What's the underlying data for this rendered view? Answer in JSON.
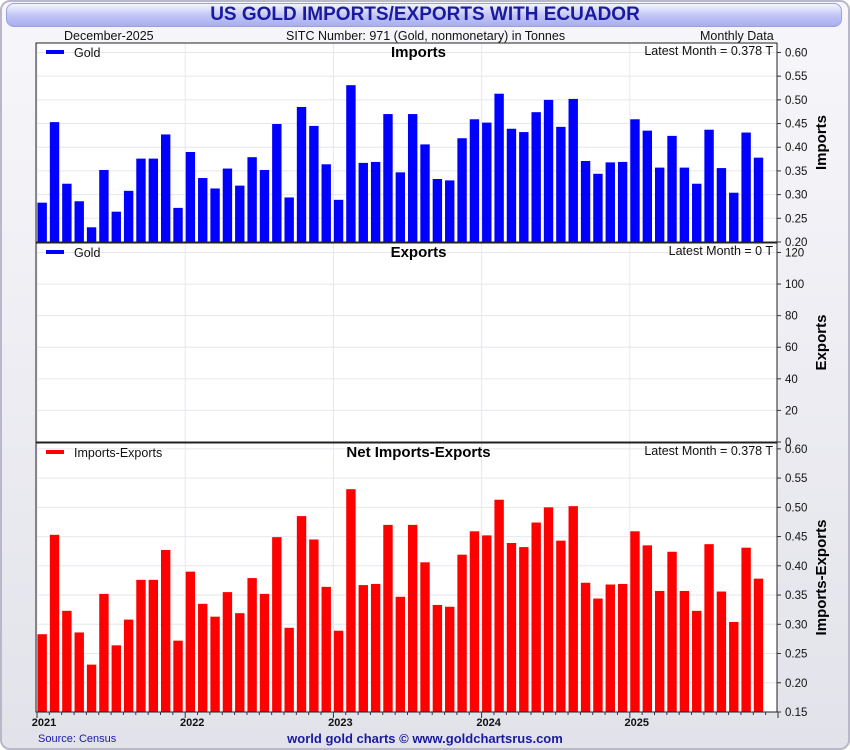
{
  "header": {
    "title": "US GOLD IMPORTS/EXPORTS WITH ECUADOR",
    "date": "December-2025",
    "sitc": "SITC Number: 971 (Gold, nonmonetary) in Tonnes",
    "frequency": "Monthly Data"
  },
  "footer": {
    "source": "Source: Census",
    "credit": "world gold charts © www.goldchartsrus.com"
  },
  "colors": {
    "imports": "#0000ff",
    "exports": "#0000ff",
    "net": "#ff0000",
    "title": "#1a1aa0"
  },
  "chart_data": [
    {
      "type": "bar",
      "title": "Imports",
      "ylabel": "Imports",
      "legend": "Gold",
      "latest": "Latest Month = 0.378 T",
      "ylim": [
        0.2,
        0.62
      ],
      "yticks": [
        "0.20",
        "0.25",
        "0.30",
        "0.35",
        "0.40",
        "0.45",
        "0.50",
        "0.55",
        "0.60"
      ],
      "start": "2021-01",
      "xtick_labels": [
        "2021",
        "2022",
        "2023",
        "2024",
        "2025"
      ],
      "values": [
        0.283,
        0.453,
        0.323,
        0.286,
        0.231,
        0.352,
        0.264,
        0.308,
        0.376,
        0.376,
        0.427,
        0.272,
        0.39,
        0.335,
        0.313,
        0.355,
        0.319,
        0.379,
        0.352,
        0.449,
        0.294,
        0.485,
        0.445,
        0.364,
        0.289,
        0.531,
        0.367,
        0.369,
        0.47,
        0.347,
        0.47,
        0.406,
        0.333,
        0.33,
        0.419,
        0.459,
        0.452,
        0.513,
        0.439,
        0.432,
        0.474,
        0.5,
        0.443,
        0.502,
        0.371,
        0.344,
        0.368,
        0.369,
        0.459,
        0.435,
        0.357,
        0.424,
        0.357,
        0.323,
        0.437,
        0.356,
        0.304,
        0.431,
        0.378
      ]
    },
    {
      "type": "bar",
      "title": "Exports",
      "ylabel": "Exports",
      "legend": "Gold",
      "latest": "Latest Month = 0 T",
      "ylim": [
        0,
        126
      ],
      "yticks": [
        "0",
        "20",
        "40",
        "60",
        "80",
        "100",
        "120"
      ],
      "start": "2021-01",
      "xtick_labels": [
        "2021",
        "2022",
        "2023",
        "2024",
        "2025"
      ],
      "values": []
    },
    {
      "type": "bar",
      "title": "Net Imports-Exports",
      "ylabel": "Imports-Exports",
      "legend": "Imports-Exports",
      "latest": "Latest Month = 0.378 T",
      "ylim": [
        0.15,
        0.61
      ],
      "yticks": [
        "0.15",
        "0.20",
        "0.25",
        "0.30",
        "0.35",
        "0.40",
        "0.45",
        "0.50",
        "0.55",
        "0.60"
      ],
      "start": "2021-01",
      "xtick_labels": [
        "2021",
        "2022",
        "2023",
        "2024",
        "2025"
      ],
      "values": [
        0.283,
        0.453,
        0.323,
        0.286,
        0.231,
        0.352,
        0.264,
        0.308,
        0.376,
        0.376,
        0.427,
        0.272,
        0.39,
        0.335,
        0.313,
        0.355,
        0.319,
        0.379,
        0.352,
        0.449,
        0.294,
        0.485,
        0.445,
        0.364,
        0.289,
        0.531,
        0.367,
        0.369,
        0.47,
        0.347,
        0.47,
        0.406,
        0.333,
        0.33,
        0.419,
        0.459,
        0.452,
        0.513,
        0.439,
        0.432,
        0.474,
        0.5,
        0.443,
        0.502,
        0.371,
        0.344,
        0.368,
        0.369,
        0.459,
        0.435,
        0.357,
        0.424,
        0.357,
        0.323,
        0.437,
        0.356,
        0.304,
        0.431,
        0.378
      ]
    }
  ]
}
